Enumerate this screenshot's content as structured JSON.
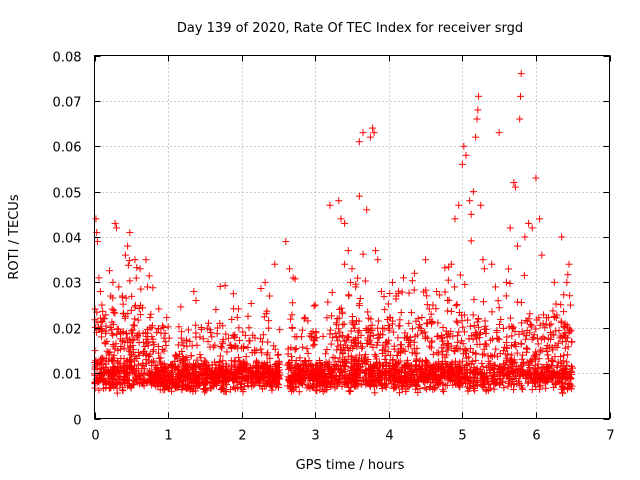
{
  "chart_data": {
    "type": "scatter",
    "title": "Day 139 of 2020, Rate Of TEC Index for receiver srgd",
    "xlabel": "GPS time / hours",
    "ylabel": "ROTI / TECUs",
    "xlim": [
      0,
      7
    ],
    "ylim": [
      0,
      0.08
    ],
    "x_ticks": [
      0,
      1,
      2,
      3,
      4,
      5,
      6,
      7
    ],
    "y_ticks": [
      0,
      0.01,
      0.02,
      0.03,
      0.04,
      0.05,
      0.06,
      0.07,
      0.08
    ],
    "x_tick_labels": [
      "0",
      "1",
      "2",
      "3",
      "4",
      "5",
      "6",
      "7"
    ],
    "y_tick_labels": [
      "0",
      "0.01",
      "0.02",
      "0.03",
      "0.04",
      "0.05",
      "0.06",
      "0.07",
      "0.08"
    ],
    "grid": true,
    "marker": "+",
    "marker_color": "#ff0000",
    "data_gap_hours": [
      2.52,
      2.62
    ],
    "series": [
      {
        "name": "ROTI",
        "points": [
          [
            0.02,
            0.044
          ],
          [
            0.03,
            0.041
          ],
          [
            0.04,
            0.039
          ],
          [
            0.06,
            0.031
          ],
          [
            0.08,
            0.028
          ],
          [
            0.1,
            0.025
          ],
          [
            0.12,
            0.022
          ],
          [
            0.22,
            0.027
          ],
          [
            0.25,
            0.03
          ],
          [
            0.28,
            0.043
          ],
          [
            0.3,
            0.042
          ],
          [
            0.33,
            0.029
          ],
          [
            0.38,
            0.027
          ],
          [
            0.42,
            0.036
          ],
          [
            0.45,
            0.038
          ],
          [
            0.48,
            0.041
          ],
          [
            0.55,
            0.035
          ],
          [
            0.62,
            0.033
          ],
          [
            0.7,
            0.035
          ],
          [
            0.72,
            0.029
          ],
          [
            0.78,
            0.02
          ],
          [
            1.35,
            0.028
          ],
          [
            1.38,
            0.026
          ],
          [
            1.65,
            0.024
          ],
          [
            2.1,
            0.02
          ],
          [
            2.32,
            0.03
          ],
          [
            2.38,
            0.027
          ],
          [
            2.45,
            0.034
          ],
          [
            2.6,
            0.039
          ],
          [
            2.65,
            0.033
          ],
          [
            2.7,
            0.031
          ],
          [
            3.0,
            0.025
          ],
          [
            3.2,
            0.047
          ],
          [
            3.32,
            0.048
          ],
          [
            3.35,
            0.044
          ],
          [
            3.4,
            0.043
          ],
          [
            3.45,
            0.037
          ],
          [
            3.5,
            0.033
          ],
          [
            3.55,
            0.029
          ],
          [
            3.6,
            0.061
          ],
          [
            3.65,
            0.063
          ],
          [
            3.75,
            0.062
          ],
          [
            3.78,
            0.064
          ],
          [
            3.8,
            0.063
          ],
          [
            3.82,
            0.037
          ],
          [
            3.85,
            0.035
          ],
          [
            3.6,
            0.049
          ],
          [
            3.7,
            0.046
          ],
          [
            3.4,
            0.034
          ],
          [
            3.48,
            0.03
          ],
          [
            4.05,
            0.03
          ],
          [
            4.2,
            0.031
          ],
          [
            4.35,
            0.032
          ],
          [
            4.5,
            0.035
          ],
          [
            4.65,
            0.028
          ],
          [
            4.8,
            0.026
          ],
          [
            4.85,
            0.034
          ],
          [
            4.9,
            0.044
          ],
          [
            4.95,
            0.047
          ],
          [
            5.0,
            0.056
          ],
          [
            5.02,
            0.06
          ],
          [
            5.05,
            0.058
          ],
          [
            5.1,
            0.048
          ],
          [
            5.12,
            0.045
          ],
          [
            5.15,
            0.05
          ],
          [
            5.18,
            0.062
          ],
          [
            5.2,
            0.066
          ],
          [
            5.21,
            0.068
          ],
          [
            5.22,
            0.071
          ],
          [
            5.25,
            0.047
          ],
          [
            5.28,
            0.035
          ],
          [
            5.3,
            0.033
          ],
          [
            5.4,
            0.034
          ],
          [
            5.45,
            0.029
          ],
          [
            5.5,
            0.063
          ],
          [
            5.6,
            0.03
          ],
          [
            5.65,
            0.042
          ],
          [
            5.7,
            0.052
          ],
          [
            5.72,
            0.051
          ],
          [
            5.75,
            0.038
          ],
          [
            5.78,
            0.066
          ],
          [
            5.79,
            0.071
          ],
          [
            5.8,
            0.076
          ],
          [
            5.85,
            0.04
          ],
          [
            5.9,
            0.043
          ],
          [
            5.95,
            0.042
          ],
          [
            6.0,
            0.053
          ],
          [
            6.05,
            0.044
          ],
          [
            6.08,
            0.036
          ],
          [
            6.12,
            0.02
          ],
          [
            6.25,
            0.03
          ],
          [
            6.35,
            0.04
          ],
          [
            6.42,
            0.03
          ],
          [
            6.45,
            0.034
          ],
          [
            6.47,
            0.025
          ],
          [
            4.6,
            0.025
          ],
          [
            4.4,
            0.022
          ],
          [
            4.1,
            0.027
          ],
          [
            3.9,
            0.028
          ],
          [
            3.3,
            0.022
          ],
          [
            2.95,
            0.018
          ],
          [
            2.85,
            0.022
          ],
          [
            1.9,
            0.018
          ],
          [
            1.55,
            0.021
          ],
          [
            1.1,
            0.014
          ]
        ]
      }
    ],
    "dense_band": {
      "description_of_cluster": "baseline",
      "x_range": [
        0,
        6.5
      ],
      "typical_min": 0.002,
      "typical_max": 0.016,
      "gap": [
        2.52,
        2.62
      ]
    }
  }
}
